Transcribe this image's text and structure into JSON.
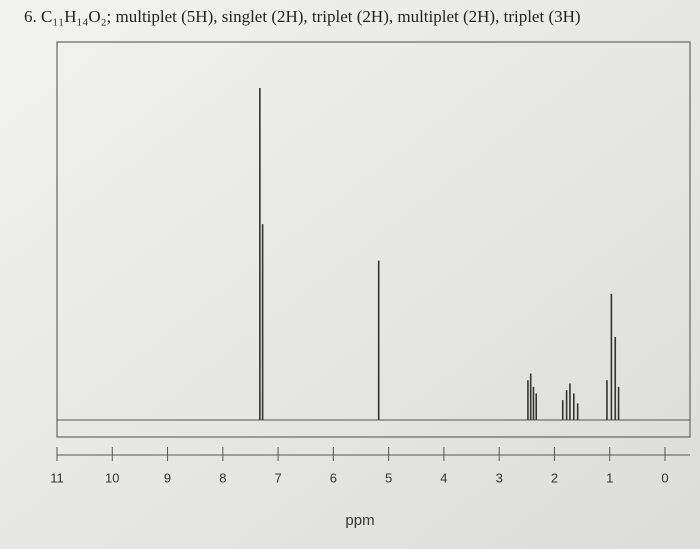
{
  "chart_data": {
    "type": "spectrum",
    "title": "6. C₁₁H₁₄O₂; multiplet (5H), singlet (2H), triplet (2H), multiplet (2H), triplet (3H)",
    "xlabel": "ppm",
    "x": [
      7.33,
      7.28,
      5.18,
      2.48,
      2.43,
      2.38,
      2.33,
      1.85,
      1.78,
      1.72,
      1.65,
      1.58,
      1.05,
      0.97,
      0.9,
      0.84
    ],
    "values": [
      100,
      59,
      48,
      12,
      14,
      10,
      8,
      6,
      9,
      11,
      8,
      5,
      12,
      38,
      25,
      10
    ],
    "color": "#333333",
    "xlim": [
      11,
      0
    ],
    "xticks": [
      11,
      10,
      9,
      8,
      7,
      6,
      5,
      4,
      3,
      2,
      1,
      0
    ],
    "ylim": [
      0,
      100
    ]
  }
}
